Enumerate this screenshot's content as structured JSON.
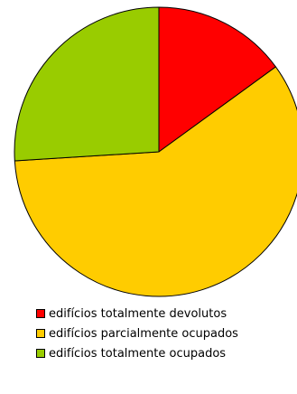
{
  "chart_data": {
    "type": "pie",
    "title": "",
    "start_angle_deg": 0,
    "direction": "clockwise",
    "slices": [
      {
        "label": "edifícios totalmente devolutos",
        "value": 15,
        "color": "#ff0000"
      },
      {
        "label": "edifícios parcialmente ocupados",
        "value": 59,
        "color": "#ffcc00"
      },
      {
        "label": "edifícios totalmente ocupados",
        "value": 26,
        "color": "#99cc00"
      }
    ],
    "legend_position": "bottom"
  }
}
